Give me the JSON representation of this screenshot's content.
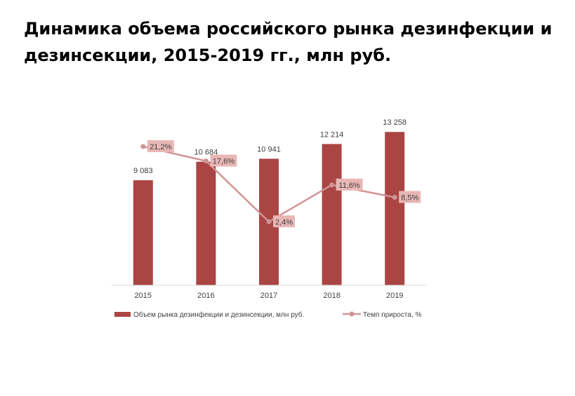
{
  "chart_data": {
    "type": "bar",
    "title": "Динамика объема российского рынка дезинфекции и дезинсекции, 2015-2019 гг., млн руб.",
    "categories": [
      "2015",
      "2016",
      "2017",
      "2018",
      "2019"
    ],
    "series": [
      {
        "name": "Объем рынка дезинфекции и дезинсекции, млн руб.",
        "type": "bar",
        "values": [
          9083,
          10684,
          10941,
          12214,
          13258
        ],
        "labels": [
          "9 083",
          "10 684",
          "10 941",
          "12 214",
          "13 258"
        ],
        "color": "#ab4543"
      },
      {
        "name": "Темп прироста, %",
        "type": "line",
        "values": [
          21.2,
          17.6,
          2.4,
          11.6,
          8.5
        ],
        "labels": [
          "21,2%",
          "17,6%",
          "2,4%",
          "11,6%",
          "8,5%"
        ],
        "color": "#d09494",
        "label_bg": "#e8b7b5"
      }
    ],
    "ylim": [
      0,
      14000
    ],
    "y2lim": [
      -13.5,
      27
    ],
    "grid": false,
    "legend": "bottom"
  }
}
